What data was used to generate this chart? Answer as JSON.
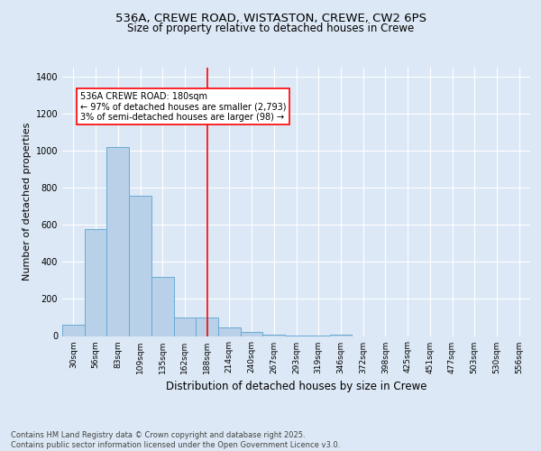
{
  "title1": "536A, CREWE ROAD, WISTASTON, CREWE, CW2 6PS",
  "title2": "Size of property relative to detached houses in Crewe",
  "xlabel": "Distribution of detached houses by size in Crewe",
  "ylabel": "Number of detached properties",
  "categories": [
    "30sqm",
    "56sqm",
    "83sqm",
    "109sqm",
    "135sqm",
    "162sqm",
    "188sqm",
    "214sqm",
    "240sqm",
    "267sqm",
    "293sqm",
    "319sqm",
    "346sqm",
    "372sqm",
    "398sqm",
    "425sqm",
    "451sqm",
    "477sqm",
    "503sqm",
    "530sqm",
    "556sqm"
  ],
  "values": [
    60,
    580,
    1020,
    760,
    320,
    100,
    100,
    45,
    20,
    5,
    3,
    1,
    5,
    0,
    0,
    0,
    0,
    0,
    0,
    0,
    0
  ],
  "bar_color": "#b8d0e8",
  "bar_edge_color": "#6aaad4",
  "reference_line_x": 6,
  "annotation_text": "536A CREWE ROAD: 180sqm\n← 97% of detached houses are smaller (2,793)\n3% of semi-detached houses are larger (98) →",
  "annotation_box_color": "white",
  "annotation_box_edge_color": "red",
  "ylim": [
    0,
    1450
  ],
  "yticks": [
    0,
    200,
    400,
    600,
    800,
    1000,
    1200,
    1400
  ],
  "background_color": "#dce8f5",
  "plot_bg_color": "#dce8f5",
  "footer": "Contains HM Land Registry data © Crown copyright and database right 2025.\nContains public sector information licensed under the Open Government Licence v3.0.",
  "title_fontsize": 9.5,
  "subtitle_fontsize": 8.5,
  "axis_label_fontsize": 8,
  "tick_fontsize": 7,
  "annotation_fontsize": 7,
  "footer_fontsize": 6
}
